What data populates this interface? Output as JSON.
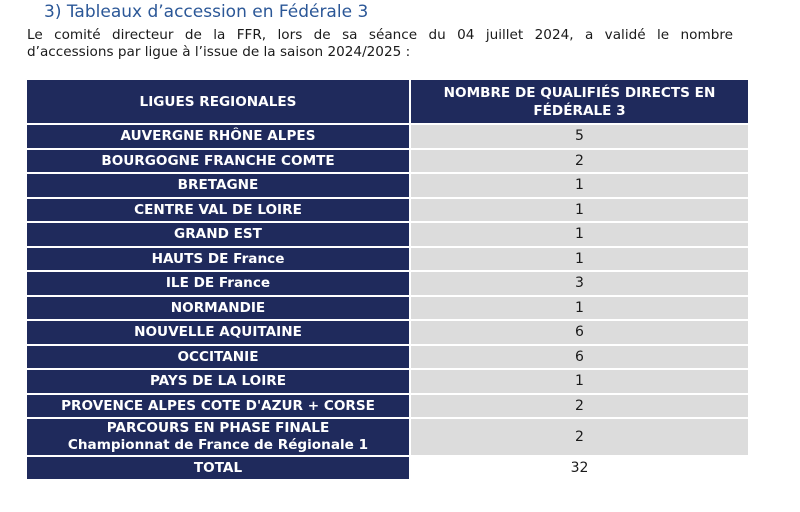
{
  "heading": "3) Tableaux d’accession en Fédérale 3",
  "intro": {
    "line1": "Le comité directeur de la FFR, lors de sa séance du 04 juillet 2024, a validé le nombre",
    "line2": "d’accessions par ligue à l’issue de la saison 2024/2025 :"
  },
  "table": {
    "headers": {
      "col1": "LIGUES REGIONALES",
      "col2_line1": "NOMBRE DE QUALIFIÉS DIRECTS EN",
      "col2_line2": "FÉDÉRALE 3"
    },
    "rows": [
      {
        "ligue": "AUVERGNE RHÔNE ALPES",
        "value": "5"
      },
      {
        "ligue": "BOURGOGNE FRANCHE COMTE",
        "value": "2"
      },
      {
        "ligue": "BRETAGNE",
        "value": "1"
      },
      {
        "ligue": "CENTRE VAL DE LOIRE",
        "value": "1"
      },
      {
        "ligue": "GRAND EST",
        "value": "1"
      },
      {
        "ligue": "HAUTS DE France",
        "value": "1"
      },
      {
        "ligue": "ILE DE France",
        "value": "3"
      },
      {
        "ligue": "NORMANDIE",
        "value": "1"
      },
      {
        "ligue": "NOUVELLE AQUITAINE",
        "value": "6"
      },
      {
        "ligue": "OCCITANIE",
        "value": "6"
      },
      {
        "ligue": "PAYS DE LA LOIRE",
        "value": "1"
      },
      {
        "ligue": "PROVENCE ALPES COTE D'AZUR + CORSE",
        "value": "2"
      }
    ],
    "phase_finale": {
      "line1": "PARCOURS EN PHASE FINALE",
      "line2": "Championnat de France de Régionale 1",
      "value": "2"
    },
    "total": {
      "label": "TOTAL",
      "value": "32"
    }
  },
  "colors": {
    "heading": "#2b5797",
    "header_bg": "#1f2a5c",
    "value_bg": "#dcdcdc"
  }
}
